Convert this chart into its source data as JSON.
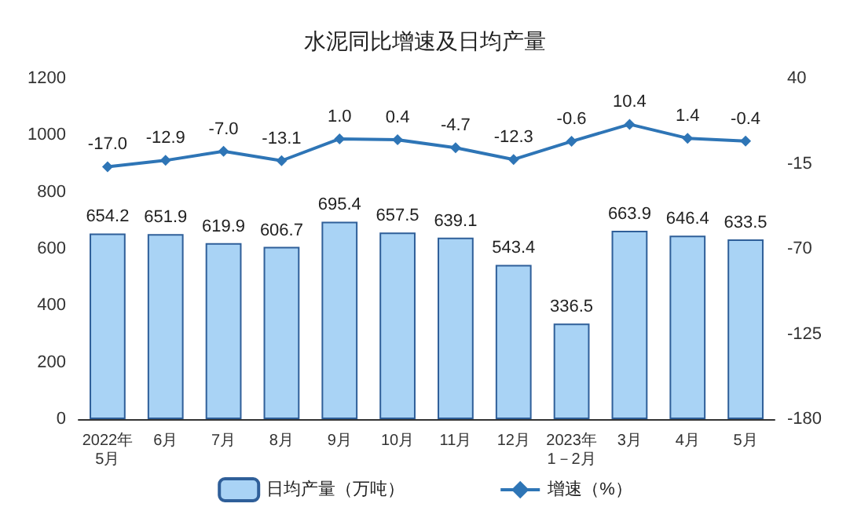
{
  "chart_data": {
    "type": "bar",
    "title": "水泥同比增速及日均产量",
    "categories": [
      "2022年\n5月",
      "6月",
      "7月",
      "8月",
      "9月",
      "10月",
      "11月",
      "12月",
      "2023年\n1－2月",
      "3月",
      "4月",
      "5月"
    ],
    "series": [
      {
        "name": "日均产量（万吨）",
        "color": "#a9d3f5",
        "values": [
          654.2,
          651.9,
          619.9,
          606.7,
          695.4,
          657.5,
          639.1,
          543.4,
          336.5,
          663.9,
          646.4,
          633.5
        ],
        "value_labels": [
          "654.2",
          "651.9",
          "619.9",
          "606.7",
          "695.4",
          "657.5",
          "639.1",
          "543.4",
          "336.5",
          "663.9",
          "646.4",
          "633.5"
        ]
      },
      {
        "name": "增速（%）",
        "type": "line",
        "axis": "y2",
        "color": "#2e75b6",
        "marker": "diamond",
        "values": [
          -17.0,
          -12.9,
          -7.0,
          -13.1,
          1.0,
          0.4,
          -4.7,
          -12.3,
          -0.6,
          10.4,
          1.4,
          -0.4
        ],
        "value_labels": [
          "-17.0",
          "-12.9",
          "-7.0",
          "-13.1",
          "1.0",
          "0.4",
          "-4.7",
          "-12.3",
          "-0.6",
          "10.4",
          "1.4",
          "-0.4"
        ]
      }
    ],
    "ylim": [
      0,
      1200
    ],
    "yticks": [
      0,
      200,
      400,
      600,
      800,
      1000,
      1200
    ],
    "y2lim": [
      -180,
      40
    ],
    "y2ticks": [
      -180,
      -125,
      -70,
      -15,
      40
    ],
    "legend": "bottom"
  }
}
